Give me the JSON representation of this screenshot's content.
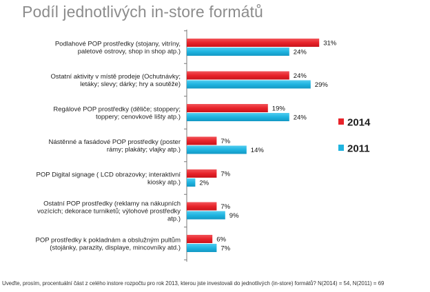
{
  "chart_data": {
    "type": "bar",
    "orientation": "horizontal",
    "title": "Podíl jednotlivých in-store formátů",
    "categories": [
      [
        "Podlahové POP prostředky (stojany, vitríny,",
        "paletové ostrovy, shop in shop atp.)"
      ],
      [
        "Ostatní aktivity v místě prodeje (Ochutnávky;",
        "letáky; slevy; dárky; hry a soutěže)"
      ],
      [
        "Regálové POP prostředky (děliče; stoppery;",
        "toppery; cenovkové lišty atp.)"
      ],
      [
        "Nástěnné a fasádové POP prostředky  (poster",
        "rámy; plakáty; vlajky atp.)"
      ],
      [
        "POP Digital signage ( LCD obrazovky; interaktivní",
        "kiosky atp.)"
      ],
      [
        "Ostatní POP prostředky (reklamy na nákupních",
        "vozících; dekorace turniketů; výlohové prostředky",
        "atp.)"
      ],
      [
        "POP prostředky k pokladnám a obslužným pultům",
        "(stojánky, parazity, displaye, mincovníky atd.)"
      ]
    ],
    "series": [
      {
        "name": "2014",
        "color": "#e8232a",
        "values": [
          31,
          24,
          19,
          7,
          7,
          7,
          6
        ]
      },
      {
        "name": "2011",
        "color": "#1fb4e0",
        "values": [
          24,
          29,
          24,
          14,
          2,
          9,
          7
        ]
      }
    ],
    "value_suffix": "%",
    "legend": "right",
    "grid": false,
    "xlim": [
      0,
      32
    ]
  },
  "footnote": "Uveďte, prosím, procentuální část z celého instore rozpočtu pro rok 2013, kterou jste investovali do jednotlivých (in-store) formátů? N(2014) = 54, N(2011) = 69"
}
